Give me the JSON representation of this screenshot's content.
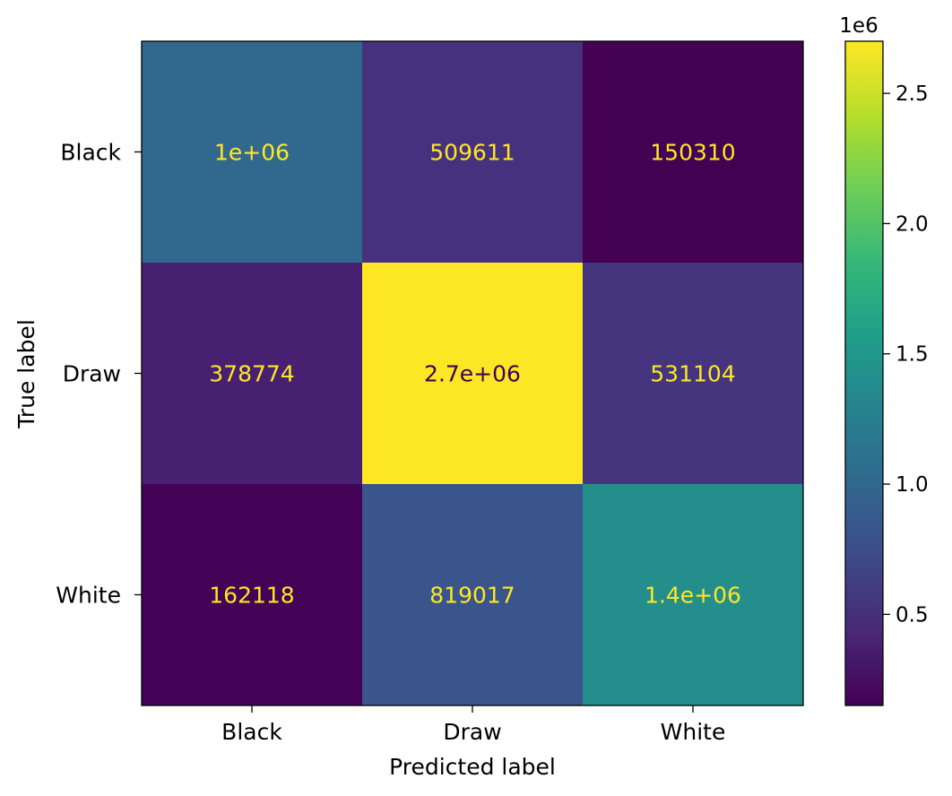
{
  "chart_data": {
    "type": "heatmap",
    "title": "",
    "xlabel": "Predicted label",
    "ylabel": "True label",
    "x_categories": [
      "Black",
      "Draw",
      "White"
    ],
    "y_categories": [
      "Black",
      "Draw",
      "White"
    ],
    "values": [
      [
        1000000,
        509611,
        150310
      ],
      [
        378774,
        2700000,
        531104
      ],
      [
        162118,
        819017,
        1400000
      ]
    ],
    "cell_labels": [
      [
        "1e+06",
        "509611",
        "150310"
      ],
      [
        "378774",
        "2.7e+06",
        "531104"
      ],
      [
        "162118",
        "819017",
        "1.4e+06"
      ]
    ],
    "colormap": "viridis",
    "colorbar": {
      "range": [
        150310,
        2700000
      ],
      "ticks": [
        0.5,
        1.0,
        1.5,
        2.0,
        2.5
      ],
      "tick_labels": [
        "0.5",
        "1.0",
        "1.5",
        "2.0",
        "2.5"
      ],
      "multiplier_label": "1e6",
      "scale": 1000000
    },
    "grid": false,
    "legend": "colorbar-right"
  }
}
